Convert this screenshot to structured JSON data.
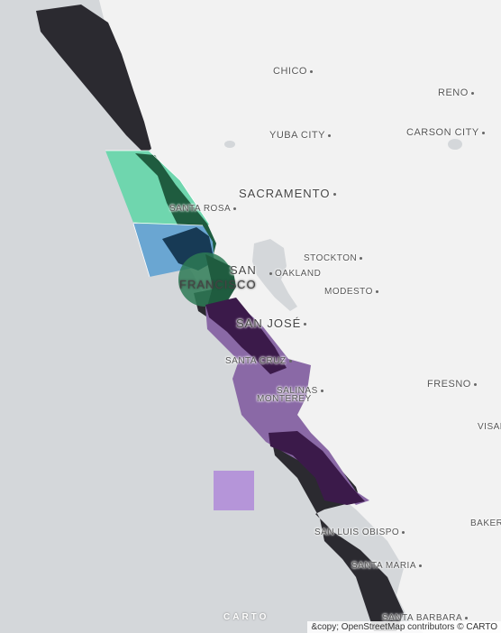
{
  "map": {
    "colors": {
      "water": "#d4d7da",
      "land": "#f2f2f2",
      "black_zone": "#2b2a30",
      "dark_purple": "#3b1a4a",
      "medium_purple": "#8a69a6",
      "light_purple": "#b595d9",
      "teal": "#6fd6ae",
      "blue": "#6aa6d2",
      "dark_green": "#1f5c3f",
      "navy": "#173a55"
    }
  },
  "cities": [
    {
      "id": "chico",
      "label": "CHICO"
    },
    {
      "id": "reno",
      "label": "RENO"
    },
    {
      "id": "yuba-city",
      "label": "YUBA CITY"
    },
    {
      "id": "carson-city",
      "label": "CARSON CITY"
    },
    {
      "id": "sacramento",
      "label": "SACRAMENTO"
    },
    {
      "id": "santa-rosa",
      "label": "SANTA ROSA"
    },
    {
      "id": "stockton",
      "label": "STOCKTON"
    },
    {
      "id": "san",
      "label": "SAN"
    },
    {
      "id": "oakland",
      "label": "OAKLAND"
    },
    {
      "id": "francisco",
      "label": "FRANCISCO"
    },
    {
      "id": "modesto",
      "label": "MODESTO"
    },
    {
      "id": "san-jose",
      "label": "SAN JOSÉ"
    },
    {
      "id": "santa-cruz",
      "label": "SANTA CRUZ"
    },
    {
      "id": "salinas",
      "label": "SALINAS"
    },
    {
      "id": "monterey",
      "label": "MONTEREY"
    },
    {
      "id": "fresno",
      "label": "FRESNO"
    },
    {
      "id": "visalia",
      "label": "VISAL"
    },
    {
      "id": "bakersfield",
      "label": "BAKER"
    },
    {
      "id": "san-luis-obispo",
      "label": "SAN LUIS OBISPO"
    },
    {
      "id": "santa-maria",
      "label": "SANTA MARIA"
    },
    {
      "id": "santa-barbara",
      "label": "SANTA BARBARA"
    }
  ],
  "footer": {
    "logo": "CARTO",
    "attribution": "&copy; OpenStreetMap contributors © CARTO"
  }
}
